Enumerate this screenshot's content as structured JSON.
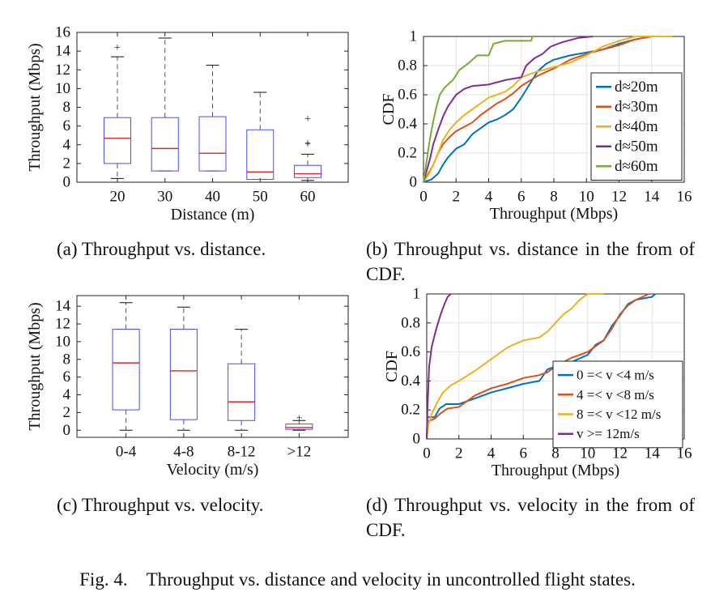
{
  "figure": {
    "caption": "Fig. 4.    Throughput vs. distance and velocity in uncontrolled flight states.",
    "subcaptions": {
      "a": "(a) Throughput vs. distance.",
      "b": "(b) Throughput vs. distance in the from of CDF.",
      "c": "(c) Throughput vs. velocity.",
      "d": "(d) Throughput vs. velocity in the from of CDF."
    }
  },
  "colors": {
    "box": "#4a4aff",
    "median": "#d62728",
    "outlier": "#e03030",
    "whisker": "#555555",
    "series": [
      "#0072BD",
      "#D95319",
      "#EDB120",
      "#7E2F8E",
      "#77AC30"
    ]
  },
  "chart_data": [
    {
      "id": "a",
      "type": "box",
      "xlabel": "Distance (m)",
      "ylabel": "Throughput (Mbps)",
      "ylim": [
        0,
        16
      ],
      "yticks": [
        0,
        2,
        4,
        6,
        8,
        10,
        12,
        14,
        16
      ],
      "categories": [
        "20",
        "30",
        "40",
        "50",
        "60"
      ],
      "boxes": [
        {
          "min": 0.4,
          "q1": 2.0,
          "median": 4.7,
          "q3": 6.9,
          "max": 13.4,
          "outliers": [
            14.3
          ]
        },
        {
          "min": 1.2,
          "q1": 1.2,
          "median": 3.6,
          "q3": 6.9,
          "max": 15.4,
          "outliers": []
        },
        {
          "min": 1.2,
          "q1": 1.2,
          "median": 3.1,
          "q3": 7.0,
          "max": 12.5,
          "outliers": []
        },
        {
          "min": 0.3,
          "q1": 0.3,
          "median": 1.1,
          "q3": 5.6,
          "max": 9.6,
          "outliers": []
        },
        {
          "min": 0.2,
          "q1": 0.5,
          "median": 0.9,
          "q3": 1.8,
          "max": 3.0,
          "outliers": [
            4.0,
            4.1,
            6.7
          ]
        }
      ]
    },
    {
      "id": "b",
      "type": "line",
      "xlabel": "Throughput (Mbps)",
      "ylabel": "CDF",
      "xlim": [
        0,
        16
      ],
      "ylim": [
        0,
        1
      ],
      "xticks": [
        0,
        2,
        4,
        6,
        8,
        10,
        12,
        14,
        16
      ],
      "yticks": [
        0,
        0.2,
        0.4,
        0.6,
        0.8,
        1
      ],
      "ytick_labels": [
        "0",
        "0.2",
        "0.4",
        "0.6",
        "0.8",
        "1"
      ],
      "grid": true,
      "legend_position": "right",
      "series": [
        {
          "name": "d≈20m",
          "points": [
            [
              0,
              0
            ],
            [
              0.5,
              0.02
            ],
            [
              0.9,
              0.06
            ],
            [
              1.2,
              0.12
            ],
            [
              1.5,
              0.17
            ],
            [
              2,
              0.23
            ],
            [
              2.5,
              0.26
            ],
            [
              3,
              0.33
            ],
            [
              3.5,
              0.37
            ],
            [
              4,
              0.41
            ],
            [
              4.5,
              0.43
            ],
            [
              5,
              0.46
            ],
            [
              5.5,
              0.5
            ],
            [
              6,
              0.58
            ],
            [
              6.5,
              0.67
            ],
            [
              7,
              0.76
            ],
            [
              7.5,
              0.81
            ],
            [
              8,
              0.84
            ],
            [
              9,
              0.87
            ],
            [
              10,
              0.89
            ],
            [
              11,
              0.91
            ],
            [
              12,
              0.95
            ],
            [
              13,
              0.98
            ],
            [
              14,
              1
            ],
            [
              15.3,
              1
            ]
          ]
        },
        {
          "name": "d≈30m",
          "points": [
            [
              0,
              0
            ],
            [
              0.3,
              0.06
            ],
            [
              0.6,
              0.12
            ],
            [
              0.9,
              0.2
            ],
            [
              1.2,
              0.26
            ],
            [
              1.6,
              0.31
            ],
            [
              2,
              0.35
            ],
            [
              2.5,
              0.38
            ],
            [
              3,
              0.41
            ],
            [
              3.5,
              0.46
            ],
            [
              4,
              0.5
            ],
            [
              4.5,
              0.54
            ],
            [
              5,
              0.57
            ],
            [
              5.5,
              0.61
            ],
            [
              6,
              0.66
            ],
            [
              7,
              0.73
            ],
            [
              8,
              0.78
            ],
            [
              9,
              0.84
            ],
            [
              10,
              0.88
            ],
            [
              11,
              0.91
            ],
            [
              12,
              0.94
            ],
            [
              13,
              0.98
            ],
            [
              14,
              1
            ],
            [
              15.3,
              1
            ]
          ]
        },
        {
          "name": "d≈40m",
          "points": [
            [
              0,
              0
            ],
            [
              0.3,
              0.05
            ],
            [
              0.6,
              0.12
            ],
            [
              0.9,
              0.2
            ],
            [
              1.2,
              0.29
            ],
            [
              1.6,
              0.36
            ],
            [
              2,
              0.41
            ],
            [
              2.5,
              0.46
            ],
            [
              3,
              0.5
            ],
            [
              3.5,
              0.54
            ],
            [
              4,
              0.58
            ],
            [
              4.5,
              0.6
            ],
            [
              5,
              0.62
            ],
            [
              5.5,
              0.66
            ],
            [
              6,
              0.72
            ],
            [
              6.5,
              0.74
            ],
            [
              7,
              0.76
            ],
            [
              8,
              0.79
            ],
            [
              9,
              0.82
            ],
            [
              10,
              0.87
            ],
            [
              11,
              0.93
            ],
            [
              12,
              0.97
            ],
            [
              13,
              1
            ],
            [
              15.3,
              1
            ]
          ]
        },
        {
          "name": "d≈50m",
          "points": [
            [
              0,
              0
            ],
            [
              0.2,
              0.08
            ],
            [
              0.4,
              0.16
            ],
            [
              0.6,
              0.26
            ],
            [
              0.9,
              0.36
            ],
            [
              1.2,
              0.45
            ],
            [
              1.5,
              0.52
            ],
            [
              2,
              0.6
            ],
            [
              2.5,
              0.64
            ],
            [
              3,
              0.66
            ],
            [
              4,
              0.67
            ],
            [
              5,
              0.7
            ],
            [
              6,
              0.72
            ],
            [
              6.3,
              0.8
            ],
            [
              6.8,
              0.85
            ],
            [
              7.3,
              0.88
            ],
            [
              7.8,
              0.93
            ],
            [
              8.5,
              0.96
            ],
            [
              9.5,
              0.99
            ],
            [
              10.4,
              1
            ]
          ]
        },
        {
          "name": "d≈60m",
          "points": [
            [
              0,
              0
            ],
            [
              0.2,
              0.15
            ],
            [
              0.4,
              0.3
            ],
            [
              0.6,
              0.42
            ],
            [
              0.8,
              0.52
            ],
            [
              1,
              0.6
            ],
            [
              1.3,
              0.65
            ],
            [
              1.8,
              0.7
            ],
            [
              2.2,
              0.77
            ],
            [
              2.8,
              0.82
            ],
            [
              3.3,
              0.87
            ],
            [
              4,
              0.87
            ],
            [
              4.3,
              0.95
            ],
            [
              5,
              0.97
            ],
            [
              6.6,
              0.97
            ],
            [
              6.7,
              1
            ]
          ]
        }
      ]
    },
    {
      "id": "c",
      "type": "box",
      "xlabel": "Velocity (m/s)",
      "ylabel": "Throughput (Mbps)",
      "ylim": [
        -0.8,
        15.2
      ],
      "yticks": [
        0,
        2,
        4,
        6,
        8,
        10,
        12,
        14
      ],
      "categories": [
        "0-4",
        "4-8",
        "8-12",
        ">12"
      ],
      "boxes": [
        {
          "min": 0.0,
          "q1": 2.3,
          "median": 7.6,
          "q3": 11.4,
          "max": 14.4,
          "outliers": []
        },
        {
          "min": 0.0,
          "q1": 1.2,
          "median": 6.7,
          "q3": 11.4,
          "max": 13.9,
          "outliers": []
        },
        {
          "min": 0.0,
          "q1": 1.1,
          "median": 3.2,
          "q3": 7.5,
          "max": 11.4,
          "outliers": []
        },
        {
          "min": 0.0,
          "q1": 0.1,
          "median": 0.3,
          "q3": 0.7,
          "max": 1.1,
          "outliers": [
            1.3
          ]
        }
      ]
    },
    {
      "id": "d",
      "type": "line",
      "xlabel": "Throughput (Mbps)",
      "ylabel": "CDF",
      "xlim": [
        0,
        16
      ],
      "ylim": [
        0,
        1
      ],
      "xticks": [
        0,
        2,
        4,
        6,
        8,
        10,
        12,
        14,
        16
      ],
      "yticks": [
        0,
        0.2,
        0.4,
        0.6,
        0.8,
        1
      ],
      "ytick_labels": [
        "0",
        "0.2",
        "0.4",
        "0.6",
        "0.8",
        "1"
      ],
      "grid": true,
      "legend_position": "right",
      "series": [
        {
          "name": "0 =< v <4 m/s",
          "points": [
            [
              0,
              0
            ],
            [
              0.05,
              0.15
            ],
            [
              0.5,
              0.15
            ],
            [
              0.8,
              0.21
            ],
            [
              1.2,
              0.24
            ],
            [
              2,
              0.24
            ],
            [
              3,
              0.28
            ],
            [
              4,
              0.32
            ],
            [
              5,
              0.35
            ],
            [
              6,
              0.38
            ],
            [
              7,
              0.4
            ],
            [
              7.5,
              0.48
            ],
            [
              8,
              0.5
            ],
            [
              9,
              0.53
            ],
            [
              10,
              0.58
            ],
            [
              10.5,
              0.65
            ],
            [
              11,
              0.68
            ],
            [
              11.5,
              0.78
            ],
            [
              12,
              0.85
            ],
            [
              12.5,
              0.93
            ],
            [
              13,
              0.96
            ],
            [
              14,
              0.98
            ],
            [
              14.2,
              1
            ]
          ]
        },
        {
          "name": "4 =< v <8 m/s",
          "points": [
            [
              0,
              0
            ],
            [
              0.05,
              0.12
            ],
            [
              0.5,
              0.14
            ],
            [
              0.9,
              0.18
            ],
            [
              1.3,
              0.21
            ],
            [
              2,
              0.22
            ],
            [
              3,
              0.3
            ],
            [
              4,
              0.35
            ],
            [
              5,
              0.38
            ],
            [
              6,
              0.42
            ],
            [
              7,
              0.44
            ],
            [
              7.5,
              0.46
            ],
            [
              8,
              0.5
            ],
            [
              9,
              0.56
            ],
            [
              10,
              0.6
            ],
            [
              10.5,
              0.64
            ],
            [
              11,
              0.68
            ],
            [
              11.5,
              0.76
            ],
            [
              12,
              0.86
            ],
            [
              12.5,
              0.92
            ],
            [
              13,
              0.96
            ],
            [
              13.8,
              1
            ]
          ]
        },
        {
          "name": "8 =< v <12 m/s",
          "points": [
            [
              0,
              0
            ],
            [
              0.1,
              0.1
            ],
            [
              0.3,
              0.17
            ],
            [
              0.6,
              0.24
            ],
            [
              1,
              0.32
            ],
            [
              1.5,
              0.37
            ],
            [
              2,
              0.4
            ],
            [
              3,
              0.47
            ],
            [
              4,
              0.55
            ],
            [
              5,
              0.63
            ],
            [
              6,
              0.68
            ],
            [
              7,
              0.7
            ],
            [
              7.5,
              0.74
            ],
            [
              8,
              0.8
            ],
            [
              8.5,
              0.86
            ],
            [
              9,
              0.9
            ],
            [
              9.5,
              0.96
            ],
            [
              10,
              1
            ],
            [
              11,
              1
            ]
          ]
        },
        {
          "name": "v >= 12m/s",
          "points": [
            [
              0,
              0
            ],
            [
              0.05,
              0.22
            ],
            [
              0.15,
              0.5
            ],
            [
              0.3,
              0.63
            ],
            [
              0.5,
              0.72
            ],
            [
              0.7,
              0.8
            ],
            [
              0.9,
              0.87
            ],
            [
              1.1,
              0.93
            ],
            [
              1.3,
              0.98
            ],
            [
              1.5,
              1
            ]
          ]
        }
      ]
    }
  ]
}
